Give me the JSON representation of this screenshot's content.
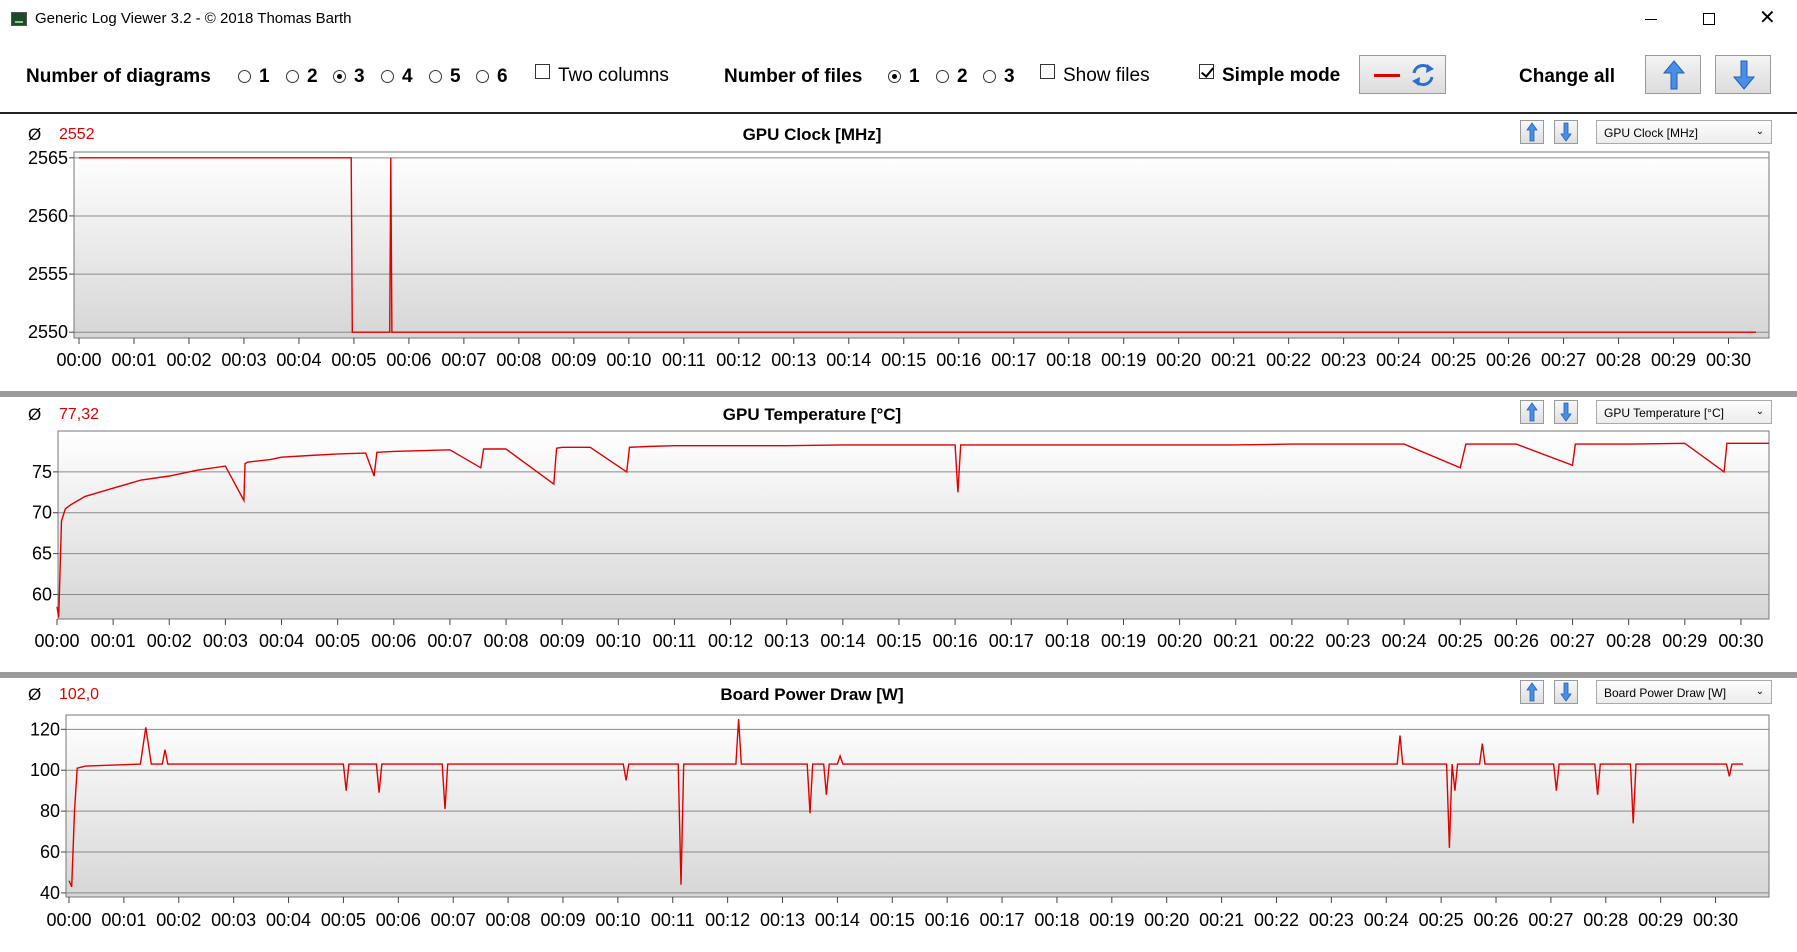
{
  "window": {
    "title": "Generic Log Viewer 3.2 - © 2018 Thomas Barth"
  },
  "toolbar": {
    "diagrams_label": "Number of diagrams",
    "diagram_options": [
      "1",
      "2",
      "3",
      "4",
      "5",
      "6"
    ],
    "diagram_selected": "3",
    "two_columns_label": "Two columns",
    "two_columns_checked": false,
    "files_label": "Number of files",
    "file_options": [
      "1",
      "2",
      "3"
    ],
    "file_selected": "1",
    "show_files_label": "Show files",
    "show_files_checked": false,
    "simple_mode_label": "Simple mode",
    "simple_mode_checked": true,
    "change_all_label": "Change all",
    "line_color": "#e00000"
  },
  "x_ticks": [
    "00:00",
    "00:01",
    "00:02",
    "00:03",
    "00:04",
    "00:05",
    "00:06",
    "00:07",
    "00:08",
    "00:09",
    "00:10",
    "00:11",
    "00:12",
    "00:13",
    "00:14",
    "00:15",
    "00:16",
    "00:17",
    "00:18",
    "00:19",
    "00:20",
    "00:21",
    "00:22",
    "00:23",
    "00:24",
    "00:25",
    "00:26",
    "00:27",
    "00:28",
    "00:29",
    "00:30"
  ],
  "panels": [
    {
      "avg_symbol": "Ø",
      "avg_value": "2552",
      "title": "GPU Clock [MHz]",
      "selector_value": "GPU Clock [MHz]",
      "y_ticks": [
        "2565",
        "2560",
        "2555",
        "2550"
      ]
    },
    {
      "avg_symbol": "Ø",
      "avg_value": "77,32",
      "title": "GPU Temperature [°C]",
      "selector_value": "GPU Temperature [°C]",
      "y_ticks": [
        "75",
        "70",
        "65",
        "60"
      ]
    },
    {
      "avg_symbol": "Ø",
      "avg_value": "102,0",
      "title": "Board Power Draw [W]",
      "selector_value": "Board Power Draw [W]",
      "y_ticks": [
        "120",
        "100",
        "80",
        "60",
        "40"
      ]
    }
  ],
  "chart_data": [
    {
      "type": "line",
      "title": "GPU Clock [MHz]",
      "xlabel": "",
      "ylabel": "",
      "ylim": [
        2549.5,
        2565.5
      ],
      "xlim": [
        0,
        30.5
      ],
      "y_ticks": [
        2565,
        2560,
        2555,
        2550
      ],
      "grid": true,
      "series": [
        {
          "x": [
            0,
            4.95,
            4.97,
            5.65,
            5.67,
            5.69,
            30.5
          ],
          "y": [
            2565,
            2565,
            2550,
            2550,
            2565,
            2550,
            2550
          ]
        }
      ]
    },
    {
      "type": "line",
      "title": "GPU Temperature [°C]",
      "xlabel": "",
      "ylabel": "",
      "ylim": [
        57,
        80
      ],
      "xlim": [
        0,
        30.5
      ],
      "y_ticks": [
        75,
        70,
        65,
        60
      ],
      "grid": true,
      "series": [
        {
          "x": [
            0,
            0.03,
            0.08,
            0.15,
            0.25,
            0.5,
            1,
            1.5,
            2,
            2.5,
            3,
            3.33,
            3.35,
            3.4,
            3.8,
            4,
            4.5,
            5,
            5.5,
            5.65,
            5.7,
            6,
            7,
            7.55,
            7.6,
            8,
            8.85,
            8.9,
            9,
            9.5,
            10.15,
            10.2,
            10.5,
            11,
            12,
            13,
            14,
            15,
            16,
            16.05,
            16.1,
            16.2,
            17,
            18,
            19,
            20,
            21,
            22,
            23,
            24,
            25,
            25.1,
            25.2,
            26,
            27,
            27.05,
            27.1,
            28,
            29,
            29.7,
            29.75,
            29.8,
            30.5
          ],
          "y": [
            58.5,
            57.2,
            69,
            70.5,
            71,
            72,
            73,
            74,
            74.5,
            75.2,
            75.7,
            71.5,
            76,
            76.2,
            76.5,
            76.8,
            77,
            77.2,
            77.3,
            74.5,
            77.4,
            77.5,
            77.7,
            75.5,
            77.8,
            77.8,
            73.5,
            77.9,
            78,
            78,
            75,
            78,
            78.1,
            78.2,
            78.2,
            78.2,
            78.3,
            78.3,
            78.3,
            72.5,
            78.3,
            78.3,
            78.3,
            78.3,
            78.3,
            78.3,
            78.3,
            78.4,
            78.4,
            78.4,
            75.5,
            78.4,
            78.4,
            78.4,
            75.8,
            78.4,
            78.4,
            78.4,
            78.5,
            75,
            78.5,
            78.5,
            78.5
          ]
        }
      ]
    },
    {
      "type": "line",
      "title": "Board Power Draw [W]",
      "xlabel": "",
      "ylabel": "",
      "ylim": [
        38,
        127
      ],
      "xlim": [
        0,
        30.5
      ],
      "y_ticks": [
        120,
        100,
        80,
        60,
        40
      ],
      "grid": true,
      "series": [
        {
          "x": [
            0,
            0.05,
            0.1,
            0.15,
            0.3,
            1.3,
            1.4,
            1.5,
            1.7,
            1.75,
            1.8,
            5,
            5.05,
            5.1,
            5.6,
            5.65,
            5.7,
            6.8,
            6.85,
            6.9,
            10.1,
            10.15,
            10.2,
            11.1,
            11.15,
            11.2,
            12.15,
            12.2,
            12.25,
            13.45,
            13.5,
            13.55,
            13.75,
            13.8,
            13.85,
            14,
            14.05,
            14.1,
            15,
            16,
            17,
            18,
            19,
            20,
            21,
            22,
            23,
            24.2,
            24.25,
            24.3,
            25.1,
            25.15,
            25.2,
            25.25,
            25.3,
            25.7,
            25.75,
            25.8,
            27.05,
            27.1,
            27.15,
            27.8,
            27.85,
            27.9,
            28.45,
            28.5,
            28.55,
            30.2,
            30.25,
            30.3,
            30.5
          ],
          "y": [
            46,
            43,
            80,
            101,
            102,
            103,
            121,
            103,
            103,
            110,
            103,
            103,
            90,
            103,
            103,
            89,
            103,
            103,
            81,
            103,
            103,
            95,
            103,
            103,
            44,
            103,
            103,
            125,
            103,
            103,
            79,
            103,
            103,
            88,
            103,
            103,
            107,
            103,
            103,
            103,
            103,
            103,
            103,
            103,
            103,
            103,
            103,
            103,
            117,
            103,
            103,
            62,
            103,
            90,
            103,
            103,
            113,
            103,
            103,
            90,
            103,
            103,
            88,
            103,
            103,
            74,
            103,
            103,
            97,
            103,
            103
          ]
        }
      ]
    }
  ]
}
